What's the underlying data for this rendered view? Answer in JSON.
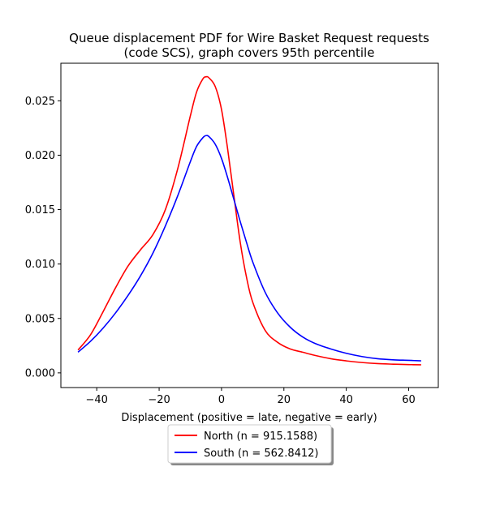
{
  "chart_data": {
    "type": "line",
    "title": "Queue displacement PDF for Wire Basket Request  requests\n(code SCS), graph covers 95th percentile",
    "title_lines": [
      "Queue displacement PDF for Wire Basket Request  requests",
      "(code SCS), graph covers 95th percentile"
    ],
    "xlabel": "Displacement (positive = late, negative = early)",
    "ylabel": "",
    "xlim": [
      -51.5,
      69.5
    ],
    "ylim": [
      -0.00135,
      0.02845
    ],
    "xticks": [
      -40,
      -20,
      0,
      20,
      40,
      60
    ],
    "xtick_labels": [
      "−40",
      "−20",
      "0",
      "20",
      "40",
      "60"
    ],
    "yticks": [
      0.0,
      0.005,
      0.01,
      0.015,
      0.02,
      0.025
    ],
    "ytick_labels": [
      "0.000",
      "0.005",
      "0.010",
      "0.015",
      "0.020",
      "0.025"
    ],
    "grid": false,
    "legend_position": "below plot, centered",
    "series": [
      {
        "name": "North (n = 915.1588)",
        "color": "#ff0000",
        "x": [
          -46,
          -42,
          -38,
          -34,
          -30,
          -26,
          -22,
          -18,
          -14,
          -10,
          -8,
          -6,
          -5,
          -4,
          -2,
          0,
          2,
          4,
          6,
          8,
          10,
          14,
          18,
          22,
          26,
          30,
          35,
          40,
          45,
          50,
          55,
          60,
          64
        ],
        "y": [
          0.0021,
          0.0035,
          0.0056,
          0.0078,
          0.0098,
          0.0113,
          0.0127,
          0.015,
          0.0188,
          0.0236,
          0.0258,
          0.027,
          0.0272,
          0.0271,
          0.0263,
          0.0242,
          0.0205,
          0.0162,
          0.012,
          0.0088,
          0.0065,
          0.0039,
          0.0028,
          0.0022,
          0.0019,
          0.0016,
          0.0013,
          0.0011,
          0.00095,
          0.00085,
          0.0008,
          0.00076,
          0.00074
        ]
      },
      {
        "name": "South (n = 562.8412)",
        "color": "#0000ff",
        "x": [
          -46,
          -42,
          -38,
          -34,
          -30,
          -26,
          -22,
          -18,
          -14,
          -10,
          -8,
          -6,
          -5,
          -4,
          -2,
          0,
          2,
          4,
          6,
          8,
          10,
          14,
          18,
          22,
          26,
          30,
          35,
          40,
          45,
          50,
          55,
          60,
          64
        ],
        "y": [
          0.0019,
          0.0029,
          0.0041,
          0.0055,
          0.0071,
          0.0089,
          0.011,
          0.0135,
          0.0163,
          0.0194,
          0.0208,
          0.0216,
          0.0218,
          0.0217,
          0.021,
          0.0197,
          0.0179,
          0.0159,
          0.0139,
          0.012,
          0.0102,
          0.0074,
          0.0055,
          0.0042,
          0.0033,
          0.0027,
          0.0022,
          0.0018,
          0.0015,
          0.0013,
          0.0012,
          0.00115,
          0.0011
        ]
      }
    ]
  }
}
